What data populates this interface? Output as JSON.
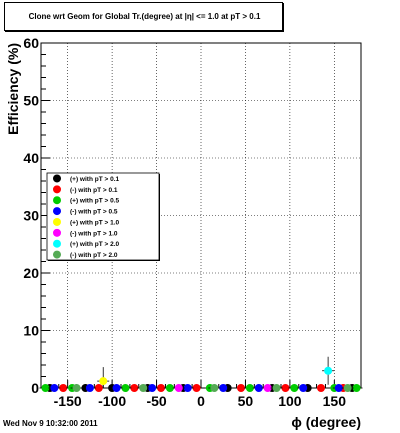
{
  "chart_data": {
    "type": "scatter",
    "title": "Clone wrt Geom for Global Tr.(degree) at |η| <= 1.0 at pT > 0.1",
    "xlabel": "ϕ (degree)",
    "ylabel": "Efficiency (%)",
    "xlim": [
      -180,
      180
    ],
    "ylim": [
      0,
      60
    ],
    "x_ticks": [
      -150,
      -100,
      -50,
      0,
      50,
      100,
      150
    ],
    "y_ticks": [
      0,
      10,
      20,
      30,
      40,
      50,
      60
    ],
    "grid": true,
    "legend_position": "middle-left",
    "series": [
      {
        "name": "(+) with pT > 0.1",
        "color": "#000000",
        "x": [
          -170,
          -130,
          -100,
          -60,
          -20,
          30,
          80,
          120,
          170
        ],
        "y": [
          0,
          0,
          0,
          0,
          0,
          0,
          0,
          0,
          0
        ]
      },
      {
        "name": "(-) with pT > 0.1",
        "color": "#ff0000",
        "x": [
          -155,
          -115,
          -75,
          -45,
          -5,
          45,
          95,
          135,
          160
        ],
        "y": [
          0,
          0,
          0,
          0,
          0,
          0,
          0,
          0,
          0
        ]
      },
      {
        "name": "(+) with pT > 0.5",
        "color": "#00cc00",
        "x": [
          -175,
          -145,
          -85,
          -35,
          10,
          55,
          105,
          150,
          175
        ],
        "y": [
          0,
          0,
          0,
          0,
          0,
          0,
          0,
          0,
          0
        ]
      },
      {
        "name": "(-) with pT > 0.5",
        "color": "#0000ff",
        "x": [
          -165,
          -125,
          -95,
          -55,
          -15,
          25,
          65,
          115,
          155
        ],
        "y": [
          0,
          0,
          0,
          0,
          0,
          0,
          0,
          0,
          0
        ]
      },
      {
        "name": "(+) with pT > 1.0",
        "color": "#ffff00",
        "x": [
          -110
        ],
        "y": [
          1.2
        ]
      },
      {
        "name": "(-) with pT > 1.0",
        "color": "#ff00ff",
        "x": [
          -25,
          75
        ],
        "y": [
          0,
          0
        ]
      },
      {
        "name": "(+) with pT > 2.0",
        "color": "#00ffff",
        "x": [
          143
        ],
        "y": [
          3
        ]
      },
      {
        "name": "(-) with pT > 2.0",
        "color": "#55aa55",
        "x": [
          -140,
          -65,
          15,
          85,
          165
        ],
        "y": [
          0,
          0,
          0,
          0,
          0
        ]
      }
    ]
  },
  "footer": "Wed Nov  9 10:32:00 2011"
}
